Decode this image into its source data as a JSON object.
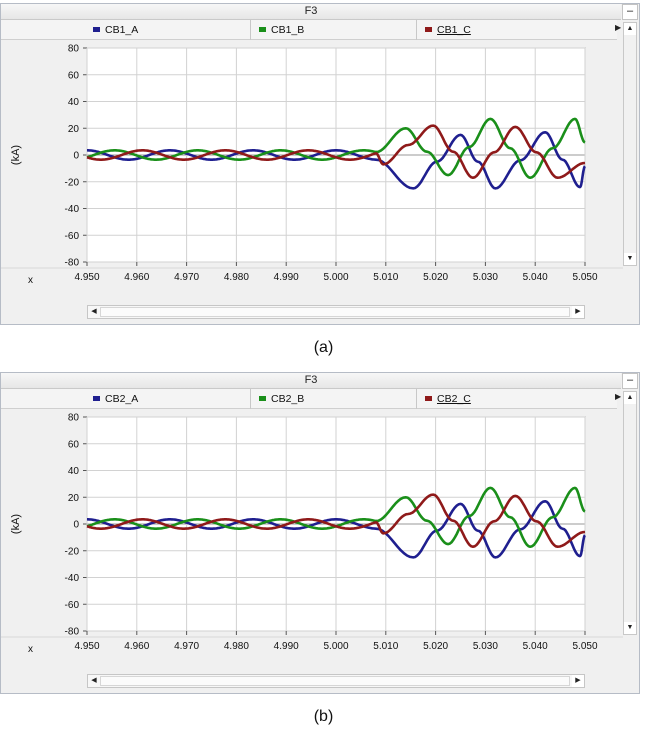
{
  "panels": [
    {
      "caption": "(a)",
      "window_title": "F3",
      "minimize_label": "–",
      "legend": [
        {
          "label": "CB1_A",
          "color": "#1f1f8f"
        },
        {
          "label": "CB1_B",
          "color": "#1a8f1a"
        },
        {
          "label": "CB1_C",
          "color": "#8f1a1a"
        }
      ],
      "x_label": "x"
    },
    {
      "caption": "(b)",
      "window_title": "F3",
      "minimize_label": "–",
      "legend": [
        {
          "label": "CB2_A",
          "color": "#1f1f8f"
        },
        {
          "label": "CB2_B",
          "color": "#1a8f1a"
        },
        {
          "label": "CB2_C",
          "color": "#8f1a1a"
        }
      ],
      "x_label": "x"
    }
  ],
  "chart_data": [
    {
      "type": "line",
      "xlabel": "",
      "ylabel": "(kA)",
      "xlim": [
        4.95,
        5.05
      ],
      "ylim": [
        -80,
        80
      ],
      "xticks": [
        "4.950",
        "4.960",
        "4.970",
        "4.980",
        "4.990",
        "5.000",
        "5.010",
        "5.020",
        "5.030",
        "5.040",
        "5.050"
      ],
      "yticks": [
        "80",
        "60",
        "40",
        "20",
        "0",
        "-20",
        "-40",
        "-60",
        "-80"
      ],
      "grid": true,
      "legend_position": "top",
      "frequency_hz": 60,
      "fault_time": 5.008,
      "series": [
        {
          "name": "CB1_A",
          "color": "#1f1f8f",
          "prefault_amplitude": 3.5,
          "phase_deg": 90,
          "peaks": [
            {
              "x": 5.0155,
              "y": -25
            },
            {
              "x": 5.025,
              "y": 15
            },
            {
              "x": 5.032,
              "y": -25
            },
            {
              "x": 5.042,
              "y": 17
            },
            {
              "x": 5.049,
              "y": -24
            }
          ]
        },
        {
          "name": "CB1_B",
          "color": "#1a8f1a",
          "prefault_amplitude": 3.5,
          "phase_deg": -30,
          "peaks": [
            {
              "x": 5.014,
              "y": 20
            },
            {
              "x": 5.0225,
              "y": -15
            },
            {
              "x": 5.031,
              "y": 27
            },
            {
              "x": 5.039,
              "y": -17
            },
            {
              "x": 5.048,
              "y": 27
            }
          ]
        },
        {
          "name": "CB1_C",
          "color": "#8f1a1a",
          "prefault_amplitude": 3.5,
          "phase_deg": 210,
          "peaks": [
            {
              "x": 5.0095,
              "y": -7
            },
            {
              "x": 5.0195,
              "y": 22
            },
            {
              "x": 5.0275,
              "y": -17
            },
            {
              "x": 5.036,
              "y": 21
            },
            {
              "x": 5.0445,
              "y": -17
            }
          ]
        }
      ]
    },
    {
      "type": "line",
      "xlabel": "",
      "ylabel": "(kA)",
      "xlim": [
        4.95,
        5.05
      ],
      "ylim": [
        -80,
        80
      ],
      "xticks": [
        "4.950",
        "4.960",
        "4.970",
        "4.980",
        "4.990",
        "5.000",
        "5.010",
        "5.020",
        "5.030",
        "5.040",
        "5.050"
      ],
      "yticks": [
        "80",
        "60",
        "40",
        "20",
        "0",
        "-20",
        "-40",
        "-60",
        "-80"
      ],
      "grid": true,
      "legend_position": "top",
      "frequency_hz": 60,
      "fault_time": 5.008,
      "series": [
        {
          "name": "CB2_A",
          "color": "#1f1f8f",
          "prefault_amplitude": 3.5,
          "phase_deg": 90,
          "peaks": [
            {
              "x": 5.0155,
              "y": -25
            },
            {
              "x": 5.025,
              "y": 15
            },
            {
              "x": 5.032,
              "y": -25
            },
            {
              "x": 5.042,
              "y": 17
            },
            {
              "x": 5.049,
              "y": -24
            }
          ]
        },
        {
          "name": "CB2_B",
          "color": "#1a8f1a",
          "prefault_amplitude": 3.5,
          "phase_deg": -30,
          "peaks": [
            {
              "x": 5.014,
              "y": 20
            },
            {
              "x": 5.0225,
              "y": -15
            },
            {
              "x": 5.031,
              "y": 27
            },
            {
              "x": 5.039,
              "y": -17
            },
            {
              "x": 5.048,
              "y": 27
            }
          ]
        },
        {
          "name": "CB2_C",
          "color": "#8f1a1a",
          "prefault_amplitude": 3.5,
          "phase_deg": 210,
          "peaks": [
            {
              "x": 5.0095,
              "y": -7
            },
            {
              "x": 5.0195,
              "y": 22
            },
            {
              "x": 5.0275,
              "y": -17
            },
            {
              "x": 5.036,
              "y": 21
            },
            {
              "x": 5.0445,
              "y": -17
            }
          ]
        }
      ]
    }
  ]
}
